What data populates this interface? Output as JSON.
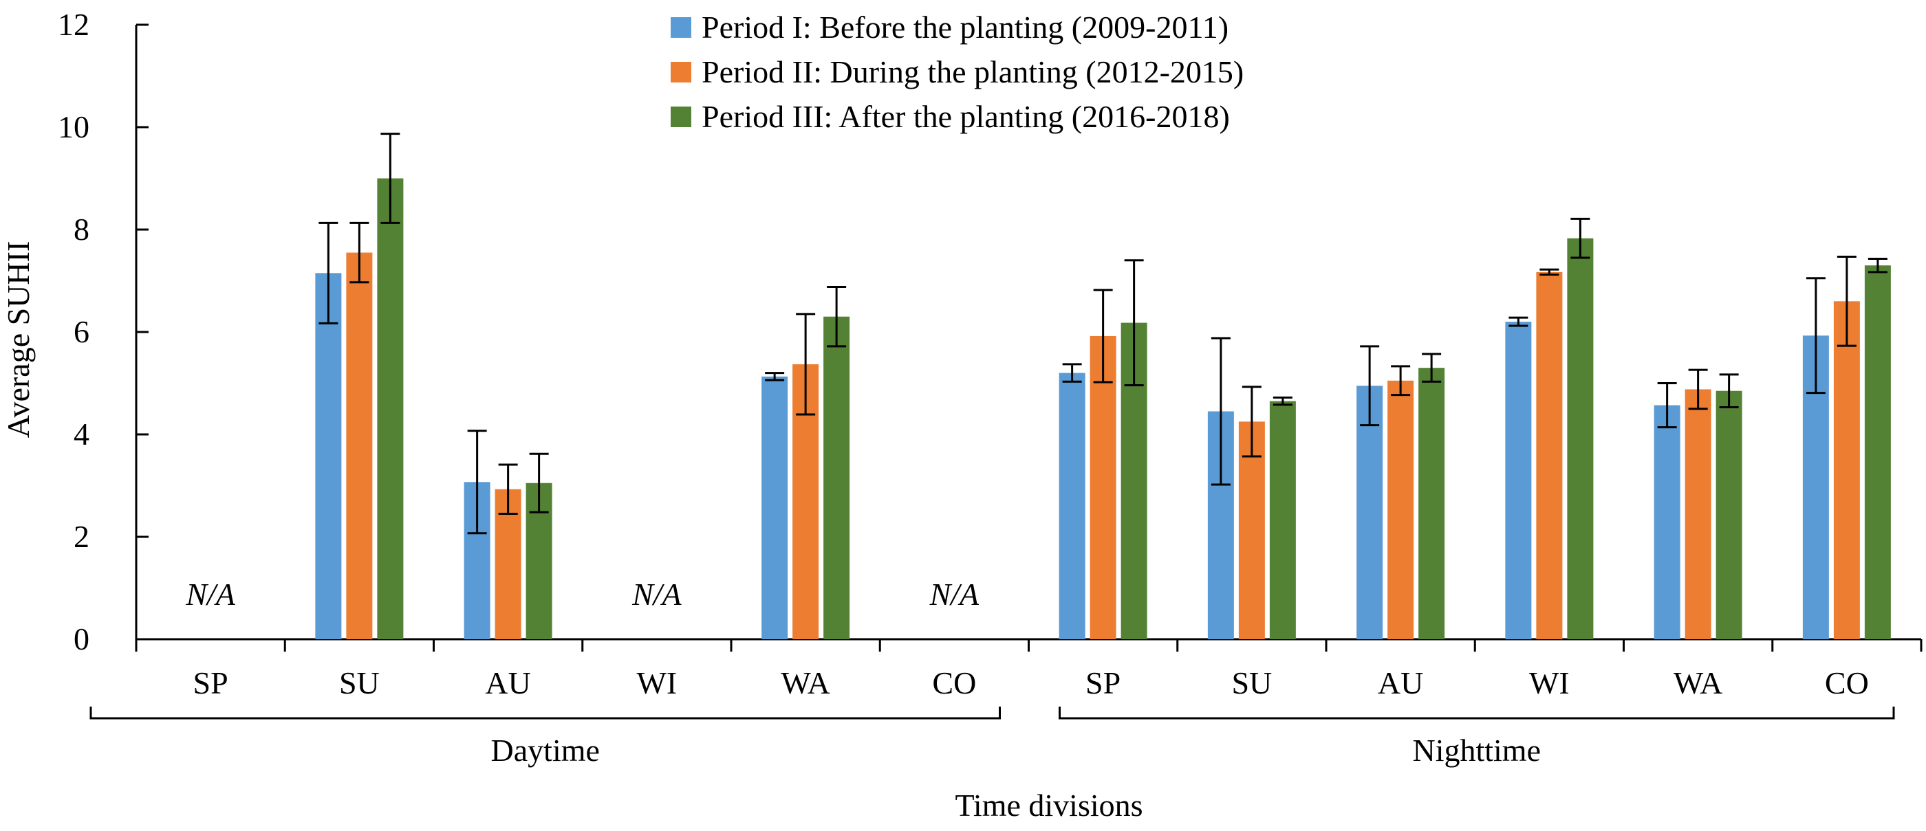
{
  "chart_data": {
    "type": "bar",
    "title": "",
    "xlabel": "Time divisions",
    "ylabel": "Average SUHII",
    "ylim": [
      0,
      12
    ],
    "yticks": [
      0,
      2,
      4,
      6,
      8,
      10,
      12
    ],
    "groups": [
      {
        "label": "Daytime",
        "categories": [
          "SP",
          "SU",
          "AU",
          "WI",
          "WA",
          "CO"
        ]
      },
      {
        "label": "Nighttime",
        "categories": [
          "SP",
          "SU",
          "AU",
          "WI",
          "WA",
          "CO"
        ]
      }
    ],
    "categories": [
      "SP",
      "SU",
      "AU",
      "WI",
      "WA",
      "CO",
      "SP",
      "SU",
      "AU",
      "WI",
      "WA",
      "CO"
    ],
    "na_label": "N/A",
    "series": [
      {
        "name": "Period I: Before the planting (2009-2011)",
        "color": "#5b9bd5",
        "values": [
          null,
          7.15,
          3.07,
          null,
          5.13,
          null,
          5.2,
          4.45,
          4.95,
          6.2,
          4.57,
          5.93
        ],
        "errors": [
          null,
          0.98,
          1.0,
          null,
          0.07,
          null,
          0.17,
          1.43,
          0.77,
          0.08,
          0.43,
          1.12
        ]
      },
      {
        "name": "Period II: During the planting (2012-2015)",
        "color": "#ed7d31",
        "values": [
          null,
          7.55,
          2.93,
          null,
          5.37,
          null,
          5.92,
          4.25,
          5.05,
          7.17,
          4.88,
          6.6
        ],
        "errors": [
          null,
          0.58,
          0.48,
          null,
          0.98,
          null,
          0.9,
          0.68,
          0.28,
          0.05,
          0.38,
          0.87
        ]
      },
      {
        "name": "Period III: After the planting (2016-2018)",
        "color": "#548235",
        "values": [
          null,
          9.0,
          3.05,
          null,
          6.3,
          null,
          6.18,
          4.65,
          5.3,
          7.83,
          4.85,
          7.3
        ],
        "errors": [
          null,
          0.87,
          0.57,
          null,
          0.58,
          null,
          1.22,
          0.07,
          0.27,
          0.38,
          0.32,
          0.13
        ]
      }
    ],
    "error_bars": true,
    "grid": false,
    "legend_position": "top-center"
  }
}
